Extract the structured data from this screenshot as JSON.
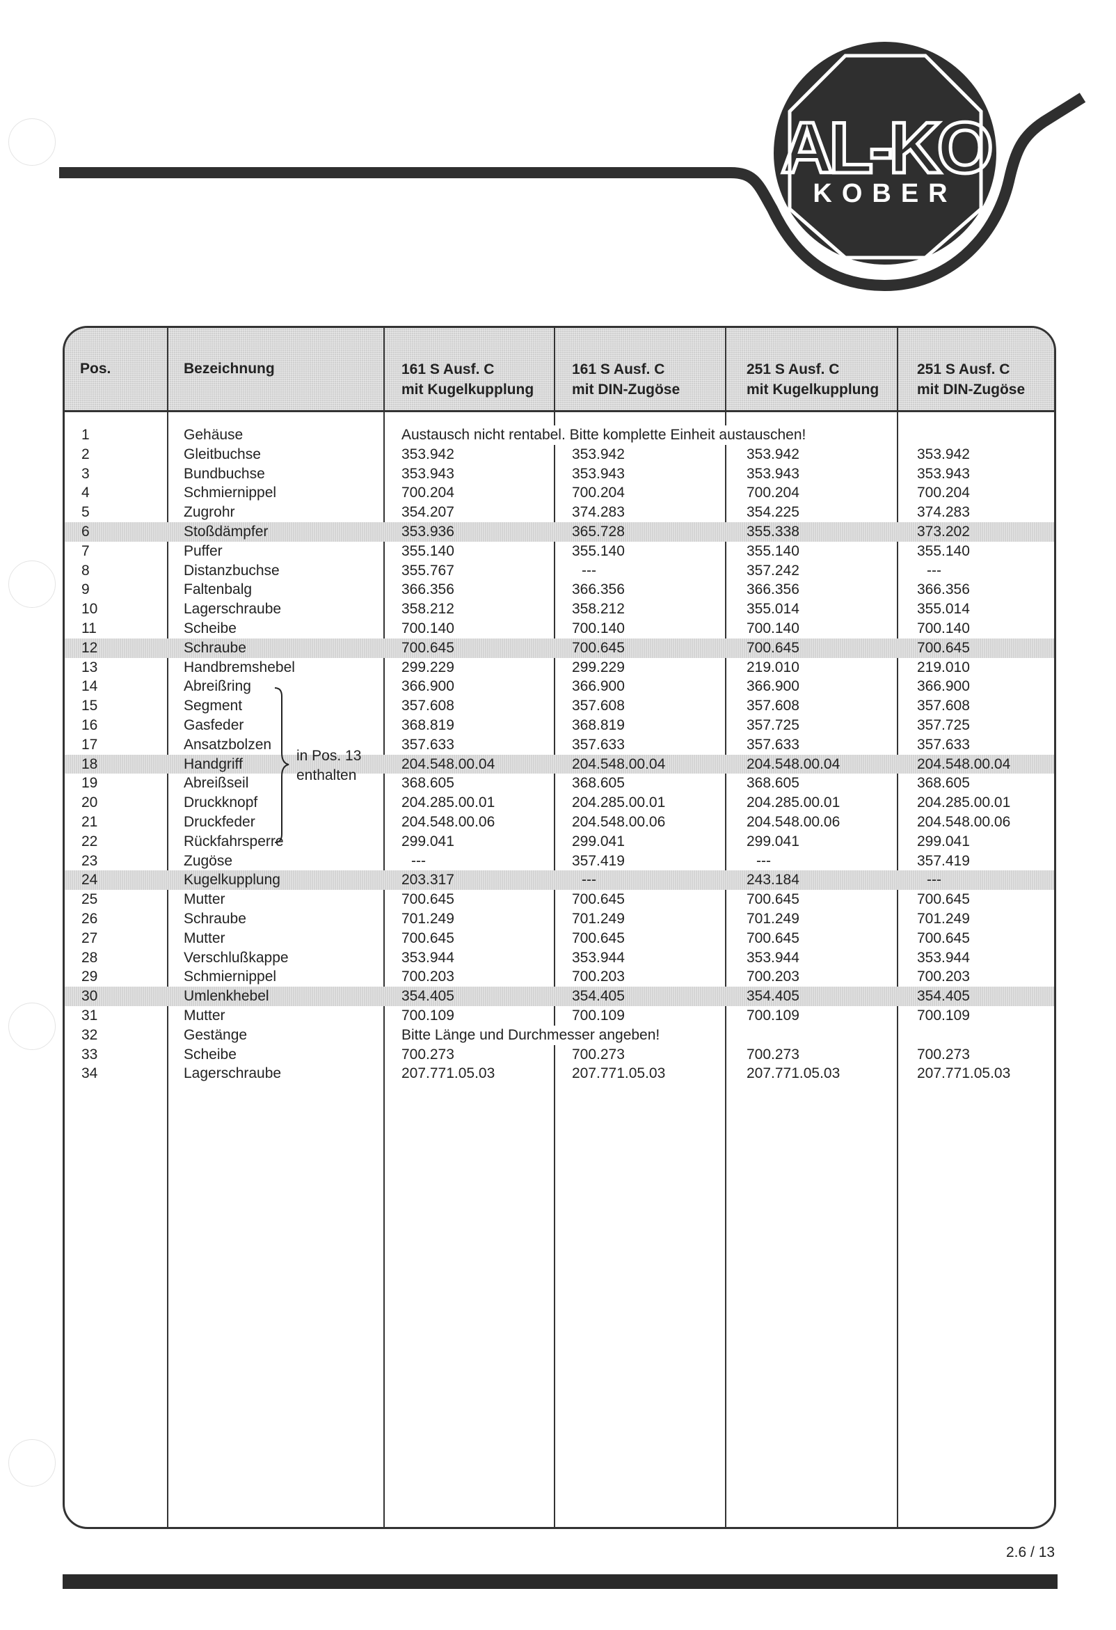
{
  "logo": {
    "brand_line1": "AL-KO",
    "brand_line2": "KOBER",
    "color": "#2f2f2f"
  },
  "table": {
    "headers": {
      "pos": "Pos.",
      "name": "Bezeichnung",
      "cols": [
        {
          "line1": "161 S Ausf. C",
          "line2": "mit Kugelkupplung"
        },
        {
          "line1": "161 S Ausf. C",
          "line2": "mit DIN-Zugöse"
        },
        {
          "line1": "251 S Ausf. C",
          "line2": "mit Kugelkupplung"
        },
        {
          "line1": "251 S Ausf. C",
          "line2": "mit DIN-Zugöse"
        }
      ]
    },
    "rows": [
      {
        "pos": "1",
        "name": "Gehäuse",
        "note": "Austausch nicht rentabel. Bitte komplette Einheit austauschen!",
        "values": [
          "",
          "",
          "",
          ""
        ]
      },
      {
        "pos": "2",
        "name": "Gleitbuchse",
        "values": [
          "353.942",
          "353.942",
          "353.942",
          "353.942"
        ]
      },
      {
        "pos": "3",
        "name": "Bundbuchse",
        "values": [
          "353.943",
          "353.943",
          "353.943",
          "353.943"
        ]
      },
      {
        "pos": "4",
        "name": "Schmiernippel",
        "values": [
          "700.204",
          "700.204",
          "700.204",
          "700.204"
        ]
      },
      {
        "pos": "5",
        "name": "Zugrohr",
        "values": [
          "354.207",
          "374.283",
          "354.225",
          "374.283"
        ]
      },
      {
        "pos": "6",
        "name": "Stoßdämpfer",
        "shaded": true,
        "values": [
          "353.936",
          "365.728",
          "355.338",
          "373.202"
        ]
      },
      {
        "pos": "7",
        "name": "Puffer",
        "values": [
          "355.140",
          "355.140",
          "355.140",
          "355.140"
        ]
      },
      {
        "pos": "8",
        "name": "Distanzbuchse",
        "values": [
          "355.767",
          "---",
          "357.242",
          "---"
        ]
      },
      {
        "pos": "9",
        "name": "Faltenbalg",
        "values": [
          "366.356",
          "366.356",
          "366.356",
          "366.356"
        ]
      },
      {
        "pos": "10",
        "name": "Lagerschraube",
        "values": [
          "358.212",
          "358.212",
          "355.014",
          "355.014"
        ]
      },
      {
        "pos": "11",
        "name": "Scheibe",
        "values": [
          "700.140",
          "700.140",
          "700.140",
          "700.140"
        ]
      },
      {
        "pos": "12",
        "name": "Schraube",
        "shaded": true,
        "values": [
          "700.645",
          "700.645",
          "700.645",
          "700.645"
        ]
      },
      {
        "pos": "13",
        "name": "Handbremshebel",
        "values": [
          "299.229",
          "299.229",
          "219.010",
          "219.010"
        ]
      },
      {
        "pos": "14",
        "name": "Abreißring",
        "values": [
          "366.900",
          "366.900",
          "366.900",
          "366.900"
        ]
      },
      {
        "pos": "15",
        "name": "Segment",
        "values": [
          "357.608",
          "357.608",
          "357.608",
          "357.608"
        ]
      },
      {
        "pos": "16",
        "name": "Gasfeder",
        "values": [
          "368.819",
          "368.819",
          "357.725",
          "357.725"
        ]
      },
      {
        "pos": "17",
        "name": "Ansatzbolzen",
        "values": [
          "357.633",
          "357.633",
          "357.633",
          "357.633"
        ]
      },
      {
        "pos": "18",
        "name": "Handgriff",
        "shaded": true,
        "values": [
          "204.548.00.04",
          "204.548.00.04",
          "204.548.00.04",
          "204.548.00.04"
        ]
      },
      {
        "pos": "19",
        "name": "Abreißseil",
        "values": [
          "368.605",
          "368.605",
          "368.605",
          "368.605"
        ]
      },
      {
        "pos": "20",
        "name": "Druckknopf",
        "values": [
          "204.285.00.01",
          "204.285.00.01",
          "204.285.00.01",
          "204.285.00.01"
        ]
      },
      {
        "pos": "21",
        "name": "Druckfeder",
        "values": [
          "204.548.00.06",
          "204.548.00.06",
          "204.548.00.06",
          "204.548.00.06"
        ]
      },
      {
        "pos": "22",
        "name": "Rückfahrsperre",
        "values": [
          "299.041",
          "299.041",
          "299.041",
          "299.041"
        ]
      },
      {
        "pos": "23",
        "name": "Zugöse",
        "values": [
          "---",
          "357.419",
          "---",
          "357.419"
        ]
      },
      {
        "pos": "24",
        "name": "Kugelkupplung",
        "shaded": true,
        "values": [
          "203.317",
          "---",
          "243.184",
          "---"
        ]
      },
      {
        "pos": "25",
        "name": "Mutter",
        "values": [
          "700.645",
          "700.645",
          "700.645",
          "700.645"
        ]
      },
      {
        "pos": "26",
        "name": "Schraube",
        "values": [
          "701.249",
          "701.249",
          "701.249",
          "701.249"
        ]
      },
      {
        "pos": "27",
        "name": "Mutter",
        "values": [
          "700.645",
          "700.645",
          "700.645",
          "700.645"
        ]
      },
      {
        "pos": "28",
        "name": "Verschlußkappe",
        "values": [
          "353.944",
          "353.944",
          "353.944",
          "353.944"
        ]
      },
      {
        "pos": "29",
        "name": "Schmiernippel",
        "values": [
          "700.203",
          "700.203",
          "700.203",
          "700.203"
        ]
      },
      {
        "pos": "30",
        "name": "Umlenkhebel",
        "shaded": true,
        "values": [
          "354.405",
          "354.405",
          "354.405",
          "354.405"
        ]
      },
      {
        "pos": "31",
        "name": "Mutter",
        "values": [
          "700.109",
          "700.109",
          "700.109",
          "700.109"
        ]
      },
      {
        "pos": "32",
        "name": "Gestänge",
        "note": "Bitte Länge und Durchmesser angeben!",
        "values": [
          "",
          "",
          "",
          ""
        ]
      },
      {
        "pos": "33",
        "name": "Scheibe",
        "values": [
          "700.273",
          "700.273",
          "700.273",
          "700.273"
        ]
      },
      {
        "pos": "34",
        "name": "Lagerschraube",
        "values": [
          "207.771.05.03",
          "207.771.05.03",
          "207.771.05.03",
          "207.771.05.03"
        ]
      }
    ],
    "group_note": {
      "line1": "in Pos. 13",
      "line2": "enthalten"
    }
  },
  "footer": {
    "page_number": "2.6 / 13"
  }
}
